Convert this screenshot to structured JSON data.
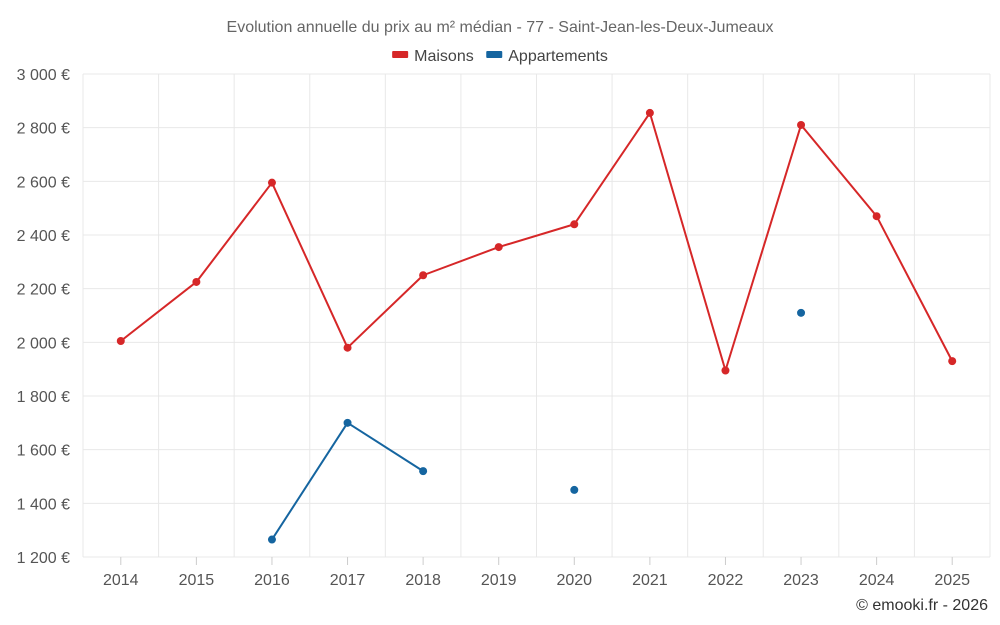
{
  "chart_data": {
    "type": "line",
    "title": "Evolution annuelle du prix au m² médian - 77 - Saint-Jean-les-Deux-Jumeaux",
    "xlabel": "",
    "ylabel": "",
    "categories": [
      "2014",
      "2015",
      "2016",
      "2017",
      "2018",
      "2019",
      "2020",
      "2021",
      "2022",
      "2023",
      "2024",
      "2025"
    ],
    "ylim": [
      1200,
      3000
    ],
    "yticks": [
      1200,
      1400,
      1600,
      1800,
      2000,
      2200,
      2400,
      2600,
      2800,
      3000
    ],
    "ytick_labels": [
      "1 200 €",
      "1 400 €",
      "1 600 €",
      "1 800 €",
      "2 000 €",
      "2 200 €",
      "2 400 €",
      "2 600 €",
      "2 800 €",
      "3 000 €"
    ],
    "grid": true,
    "legend_position": "top-center",
    "series": [
      {
        "name": "Maisons",
        "color": "#d62728",
        "values": [
          2005,
          2225,
          2595,
          1980,
          2250,
          2355,
          2440,
          2855,
          1895,
          2810,
          2470,
          1930
        ]
      },
      {
        "name": "Appartements",
        "color": "#1565a0",
        "values": [
          null,
          null,
          1265,
          1700,
          1520,
          null,
          1450,
          null,
          null,
          2110,
          null,
          null
        ]
      }
    ]
  },
  "credit": "© emooki.fr - 2026"
}
